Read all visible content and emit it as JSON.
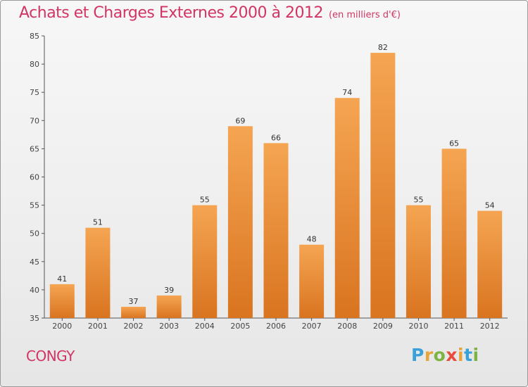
{
  "chart_data": {
    "type": "bar",
    "title": "Achats et Charges Externes 2000 à 2012",
    "subtitle": "(en milliers d'€)",
    "categories": [
      "2000",
      "2001",
      "2002",
      "2003",
      "2004",
      "2005",
      "2006",
      "2007",
      "2008",
      "2009",
      "2010",
      "2011",
      "2012"
    ],
    "values": [
      41,
      51,
      37,
      39,
      55,
      69,
      66,
      48,
      74,
      82,
      55,
      65,
      54
    ],
    "ylim": [
      35,
      85
    ],
    "yticks": [
      35,
      40,
      45,
      50,
      55,
      60,
      65,
      70,
      75,
      80,
      85
    ],
    "xlabel": "",
    "ylabel": "",
    "grid": false,
    "data_labels": true,
    "bar_color_top": "#f5a552",
    "bar_color_bottom": "#d97420"
  },
  "commune": "CONGY",
  "brand": {
    "letters": [
      "P",
      "r",
      "o",
      "x",
      "i",
      "t",
      "i"
    ],
    "colors": [
      "#3aa0d8",
      "#e8a33a",
      "#7cb342",
      "#e84c3d",
      "#e8a33a",
      "#3aa0d8",
      "#7cb342"
    ]
  },
  "colors": {
    "title": "#d23563",
    "axis": "#555555"
  }
}
